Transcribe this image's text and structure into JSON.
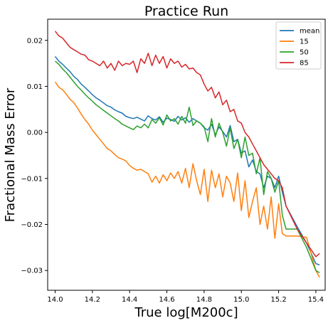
{
  "chart_data": {
    "type": "line",
    "title": "Practice Run",
    "xlabel": "True log[M200c]",
    "ylabel": "Fractional Mass Error",
    "xlim": [
      13.96,
      15.45
    ],
    "ylim": [
      -0.0343,
      0.0246
    ],
    "xticks": [
      14.0,
      14.2,
      14.4,
      14.6,
      14.8,
      15.0,
      15.2,
      15.4
    ],
    "xtick_labels": [
      "14.0",
      "14.2",
      "14.4",
      "14.6",
      "14.8",
      "15.0",
      "15.2",
      "15.4"
    ],
    "yticks": [
      0.02,
      0.01,
      0.0,
      -0.01,
      -0.02,
      -0.03
    ],
    "ytick_labels": [
      "0.02",
      "0.01",
      "0.00",
      "−0.01",
      "−0.02",
      "−0.03"
    ],
    "grid": false,
    "legend_position": "top-right",
    "series": [
      {
        "name": "mean",
        "color": "#1f77b4",
        "x": [
          14.0,
          14.02,
          14.04,
          14.06,
          14.08,
          14.1,
          14.12,
          14.14,
          14.16,
          14.18,
          14.2,
          14.22,
          14.24,
          14.26,
          14.28,
          14.3,
          14.32,
          14.34,
          14.36,
          14.38,
          14.4,
          14.42,
          14.44,
          14.46,
          14.48,
          14.5,
          14.52,
          14.54,
          14.56,
          14.58,
          14.6,
          14.62,
          14.64,
          14.66,
          14.68,
          14.7,
          14.72,
          14.74,
          14.76,
          14.78,
          14.8,
          14.82,
          14.84,
          14.86,
          14.88,
          14.9,
          14.92,
          14.94,
          14.96,
          14.98,
          15.0,
          15.02,
          15.04,
          15.06,
          15.08,
          15.1,
          15.12,
          15.14,
          15.16,
          15.18,
          15.2,
          15.22,
          15.24,
          15.3,
          15.35,
          15.4,
          15.42
        ],
        "y": [
          0.0165,
          0.0155,
          0.0148,
          0.014,
          0.0132,
          0.0122,
          0.0115,
          0.0105,
          0.0098,
          0.009,
          0.0082,
          0.0075,
          0.007,
          0.0064,
          0.0058,
          0.0055,
          0.0049,
          0.0045,
          0.0042,
          0.0035,
          0.0032,
          0.003,
          0.0033,
          0.0029,
          0.0025,
          0.0036,
          0.003,
          0.0027,
          0.0034,
          0.0022,
          0.0031,
          0.0028,
          0.0024,
          0.0035,
          0.0027,
          0.0032,
          0.0022,
          0.003,
          0.0025,
          0.002,
          0.001,
          0.0005,
          0.0018,
          -0.0005,
          0.0012,
          0.0002,
          -0.001,
          0.0015,
          -0.002,
          -0.0015,
          -0.0045,
          -0.004,
          -0.0075,
          -0.006,
          -0.0085,
          -0.009,
          -0.012,
          -0.0095,
          -0.01,
          -0.012,
          -0.0095,
          -0.013,
          -0.016,
          -0.0205,
          -0.024,
          -0.0285,
          -0.0288
        ]
      },
      {
        "name": "15",
        "color": "#ff7f0e",
        "x": [
          14.0,
          14.02,
          14.04,
          14.06,
          14.08,
          14.1,
          14.12,
          14.14,
          14.16,
          14.18,
          14.2,
          14.22,
          14.24,
          14.26,
          14.28,
          14.3,
          14.32,
          14.34,
          14.36,
          14.38,
          14.4,
          14.42,
          14.44,
          14.46,
          14.48,
          14.5,
          14.52,
          14.54,
          14.56,
          14.58,
          14.6,
          14.62,
          14.64,
          14.66,
          14.68,
          14.7,
          14.72,
          14.74,
          14.76,
          14.78,
          14.8,
          14.82,
          14.84,
          14.86,
          14.88,
          14.9,
          14.92,
          14.94,
          14.96,
          14.98,
          15.0,
          15.02,
          15.04,
          15.06,
          15.08,
          15.1,
          15.12,
          15.14,
          15.16,
          15.18,
          15.2,
          15.22,
          15.24,
          15.3,
          15.35,
          15.4,
          15.42
        ],
        "y": [
          0.011,
          0.0098,
          0.0093,
          0.0083,
          0.0072,
          0.0065,
          0.0053,
          0.004,
          0.0028,
          0.0018,
          0.0005,
          -0.0005,
          -0.0015,
          -0.0025,
          -0.0035,
          -0.004,
          -0.0048,
          -0.0055,
          -0.0058,
          -0.0062,
          -0.0072,
          -0.0078,
          -0.0082,
          -0.008,
          -0.0085,
          -0.009,
          -0.0108,
          -0.0095,
          -0.011,
          -0.0092,
          -0.0105,
          -0.0088,
          -0.01,
          -0.0085,
          -0.011,
          -0.0078,
          -0.012,
          -0.0068,
          -0.0105,
          -0.0135,
          -0.008,
          -0.015,
          -0.0082,
          -0.012,
          -0.009,
          -0.014,
          -0.0095,
          -0.011,
          -0.015,
          -0.0088,
          -0.017,
          -0.0105,
          -0.0185,
          -0.015,
          -0.012,
          -0.02,
          -0.016,
          -0.021,
          -0.014,
          -0.023,
          -0.0155,
          -0.022,
          -0.0225,
          -0.0225,
          -0.0228,
          -0.03,
          -0.0315
        ]
      },
      {
        "name": "50",
        "color": "#2ca02c",
        "x": [
          14.0,
          14.02,
          14.04,
          14.06,
          14.08,
          14.1,
          14.12,
          14.14,
          14.16,
          14.18,
          14.2,
          14.22,
          14.24,
          14.26,
          14.28,
          14.3,
          14.32,
          14.34,
          14.36,
          14.38,
          14.4,
          14.42,
          14.44,
          14.46,
          14.48,
          14.5,
          14.52,
          14.54,
          14.56,
          14.58,
          14.6,
          14.62,
          14.64,
          14.66,
          14.68,
          14.7,
          14.72,
          14.74,
          14.76,
          14.78,
          14.8,
          14.82,
          14.84,
          14.86,
          14.88,
          14.9,
          14.92,
          14.94,
          14.96,
          14.98,
          15.0,
          15.02,
          15.04,
          15.06,
          15.08,
          15.1,
          15.12,
          15.14,
          15.16,
          15.18,
          15.2,
          15.22,
          15.24,
          15.3,
          15.35,
          15.4,
          15.42
        ],
        "y": [
          0.0155,
          0.0148,
          0.0138,
          0.013,
          0.012,
          0.011,
          0.01,
          0.0092,
          0.0083,
          0.0075,
          0.0068,
          0.006,
          0.0054,
          0.0048,
          0.0042,
          0.0036,
          0.003,
          0.0025,
          0.0018,
          0.0014,
          0.001,
          0.0006,
          0.0014,
          0.001,
          0.0018,
          0.001,
          0.0028,
          0.002,
          0.0032,
          0.0016,
          0.0038,
          0.0025,
          0.003,
          0.0018,
          0.0035,
          0.002,
          0.0055,
          0.0015,
          0.0025,
          0.002,
          0.0012,
          -0.002,
          0.003,
          -0.001,
          0.002,
          0.0,
          -0.003,
          0.001,
          -0.0035,
          -0.0015,
          -0.0055,
          -0.001,
          -0.005,
          -0.0045,
          -0.009,
          -0.0055,
          -0.0135,
          -0.0085,
          -0.01,
          -0.013,
          -0.0105,
          -0.018,
          -0.021,
          -0.021,
          -0.025,
          -0.03,
          -0.0305
        ]
      },
      {
        "name": "85",
        "color": "#d62728",
        "x": [
          14.0,
          14.02,
          14.04,
          14.06,
          14.08,
          14.1,
          14.12,
          14.14,
          14.16,
          14.18,
          14.2,
          14.22,
          14.24,
          14.26,
          14.28,
          14.3,
          14.32,
          14.34,
          14.36,
          14.38,
          14.4,
          14.42,
          14.44,
          14.46,
          14.48,
          14.5,
          14.52,
          14.54,
          14.56,
          14.58,
          14.6,
          14.62,
          14.64,
          14.66,
          14.68,
          14.7,
          14.72,
          14.74,
          14.76,
          14.78,
          14.8,
          14.82,
          14.84,
          14.86,
          14.88,
          14.9,
          14.92,
          14.94,
          14.96,
          14.98,
          15.0,
          15.02,
          15.04,
          15.06,
          15.08,
          15.1,
          15.12,
          15.14,
          15.16,
          15.18,
          15.2,
          15.22,
          15.24,
          15.3,
          15.35,
          15.4,
          15.42
        ],
        "y": [
          0.022,
          0.021,
          0.0205,
          0.0195,
          0.0185,
          0.018,
          0.0175,
          0.017,
          0.0168,
          0.0158,
          0.0155,
          0.015,
          0.0145,
          0.0155,
          0.014,
          0.015,
          0.0135,
          0.0155,
          0.0145,
          0.015,
          0.0148,
          0.0155,
          0.013,
          0.016,
          0.015,
          0.0172,
          0.0145,
          0.0168,
          0.015,
          0.0165,
          0.014,
          0.016,
          0.015,
          0.0155,
          0.0142,
          0.0148,
          0.0138,
          0.014,
          0.013,
          0.0125,
          0.0105,
          0.009,
          0.0098,
          0.0075,
          0.0088,
          0.006,
          0.007,
          0.0045,
          0.005,
          0.0025,
          0.002,
          0.0,
          -0.001,
          -0.0025,
          -0.004,
          -0.0055,
          -0.007,
          -0.008,
          -0.009,
          -0.01,
          -0.0105,
          -0.012,
          -0.016,
          -0.021,
          -0.024,
          -0.027,
          -0.0263
        ]
      }
    ]
  }
}
